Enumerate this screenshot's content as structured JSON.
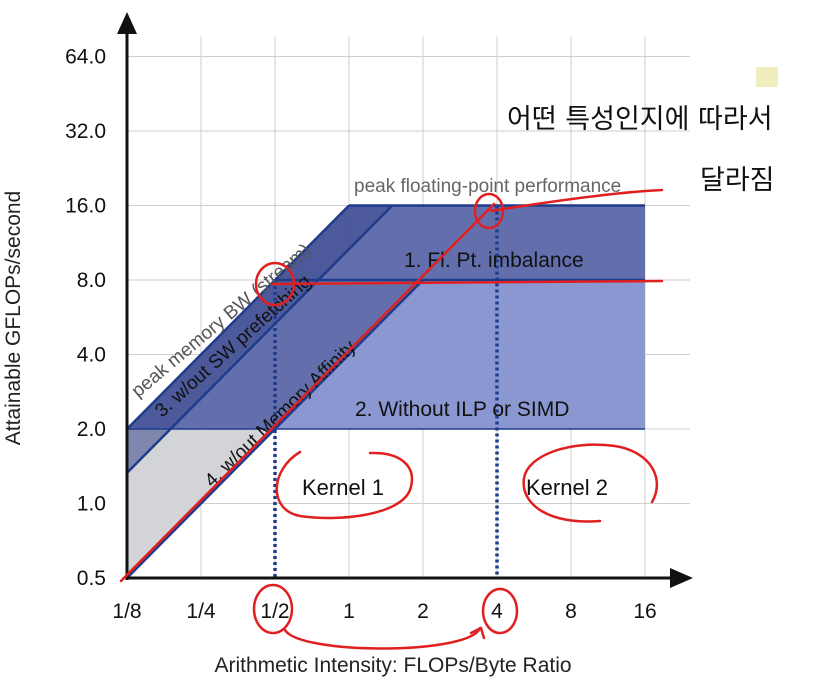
{
  "chart_data": {
    "type": "line",
    "title": "",
    "xlabel": "Arithmetic Intensity: FLOPs/Byte Ratio",
    "ylabel": "Attainable GFLOPs/second",
    "x_scale": "log2",
    "y_scale": "log2",
    "xlim": [
      0.125,
      16
    ],
    "ylim": [
      0.5,
      64
    ],
    "x_ticks": [
      {
        "value": 0.125,
        "label": "1/8"
      },
      {
        "value": 0.25,
        "label": "1/4"
      },
      {
        "value": 0.5,
        "label": "1/2"
      },
      {
        "value": 1,
        "label": "1"
      },
      {
        "value": 2,
        "label": "2"
      },
      {
        "value": 4,
        "label": "4"
      },
      {
        "value": 8,
        "label": "8"
      },
      {
        "value": 16,
        "label": "16"
      }
    ],
    "y_ticks": [
      {
        "value": 0.5,
        "label": "0.5"
      },
      {
        "value": 1,
        "label": "1.0"
      },
      {
        "value": 2,
        "label": "2.0"
      },
      {
        "value": 4,
        "label": "4.0"
      },
      {
        "value": 8,
        "label": "8.0"
      },
      {
        "value": 16,
        "label": "16.0"
      },
      {
        "value": 32,
        "label": "32.0"
      },
      {
        "value": 64,
        "label": "64.0"
      }
    ],
    "grid": true,
    "series": [
      {
        "name": "peak memory BW (stream)",
        "x": [
          0.125,
          1
        ],
        "y": [
          2,
          16
        ]
      },
      {
        "name": "3. w/out SW prefetching",
        "x": [
          0.125,
          1.5
        ],
        "y": [
          1.33,
          16
        ]
      },
      {
        "name": "4. w/out Memory Affinity",
        "x": [
          0.125,
          2
        ],
        "y": [
          0.5,
          8
        ]
      },
      {
        "name": "peak floating-point performance",
        "x": [
          1,
          16
        ],
        "y": [
          16,
          16
        ]
      },
      {
        "name": "1. Fl. Pt. imbalance",
        "x": [
          0.5,
          16
        ],
        "y": [
          8,
          8
        ]
      },
      {
        "name": "2. Without ILP or SIMD",
        "x": [
          0.25,
          16
        ],
        "y": [
          2,
          2
        ]
      }
    ],
    "kernels": [
      {
        "label": "Kernel 1",
        "x": 0.5
      },
      {
        "label": "Kernel 2",
        "x": 4
      }
    ],
    "annotations": [
      "어떤 특성인지에 따라서",
      "달라짐"
    ],
    "colors": {
      "roof_line": "#1f3c8c",
      "band_dark": "#5a67a8",
      "band_light": "#8a97d0",
      "memory_wedge": "#d3d4d8",
      "kernel_marker": "#1f3c8c",
      "handwriting": "#e02020",
      "peak_label": "#666666",
      "sticky_note": "#f0eebc"
    }
  }
}
